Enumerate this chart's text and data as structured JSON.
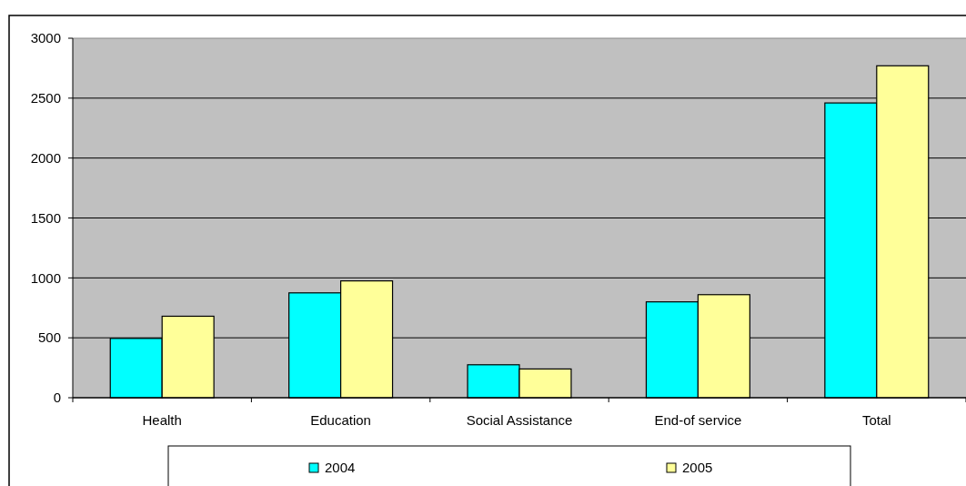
{
  "chart_data": {
    "type": "bar",
    "categories": [
      "Health",
      "Education",
      "Social Assistance",
      "End-of service",
      "Total"
    ],
    "series": [
      {
        "name": "2004",
        "color": "#00ffff",
        "values": [
          495,
          875,
          275,
          800,
          2460
        ]
      },
      {
        "name": "2005",
        "color": "#ffff99",
        "values": [
          680,
          975,
          240,
          860,
          2770
        ]
      }
    ],
    "ylim": [
      0,
      3000
    ],
    "yticks": [
      0,
      500,
      1000,
      1500,
      2000,
      2500,
      3000
    ],
    "grid": "y",
    "legend": "bottom"
  }
}
